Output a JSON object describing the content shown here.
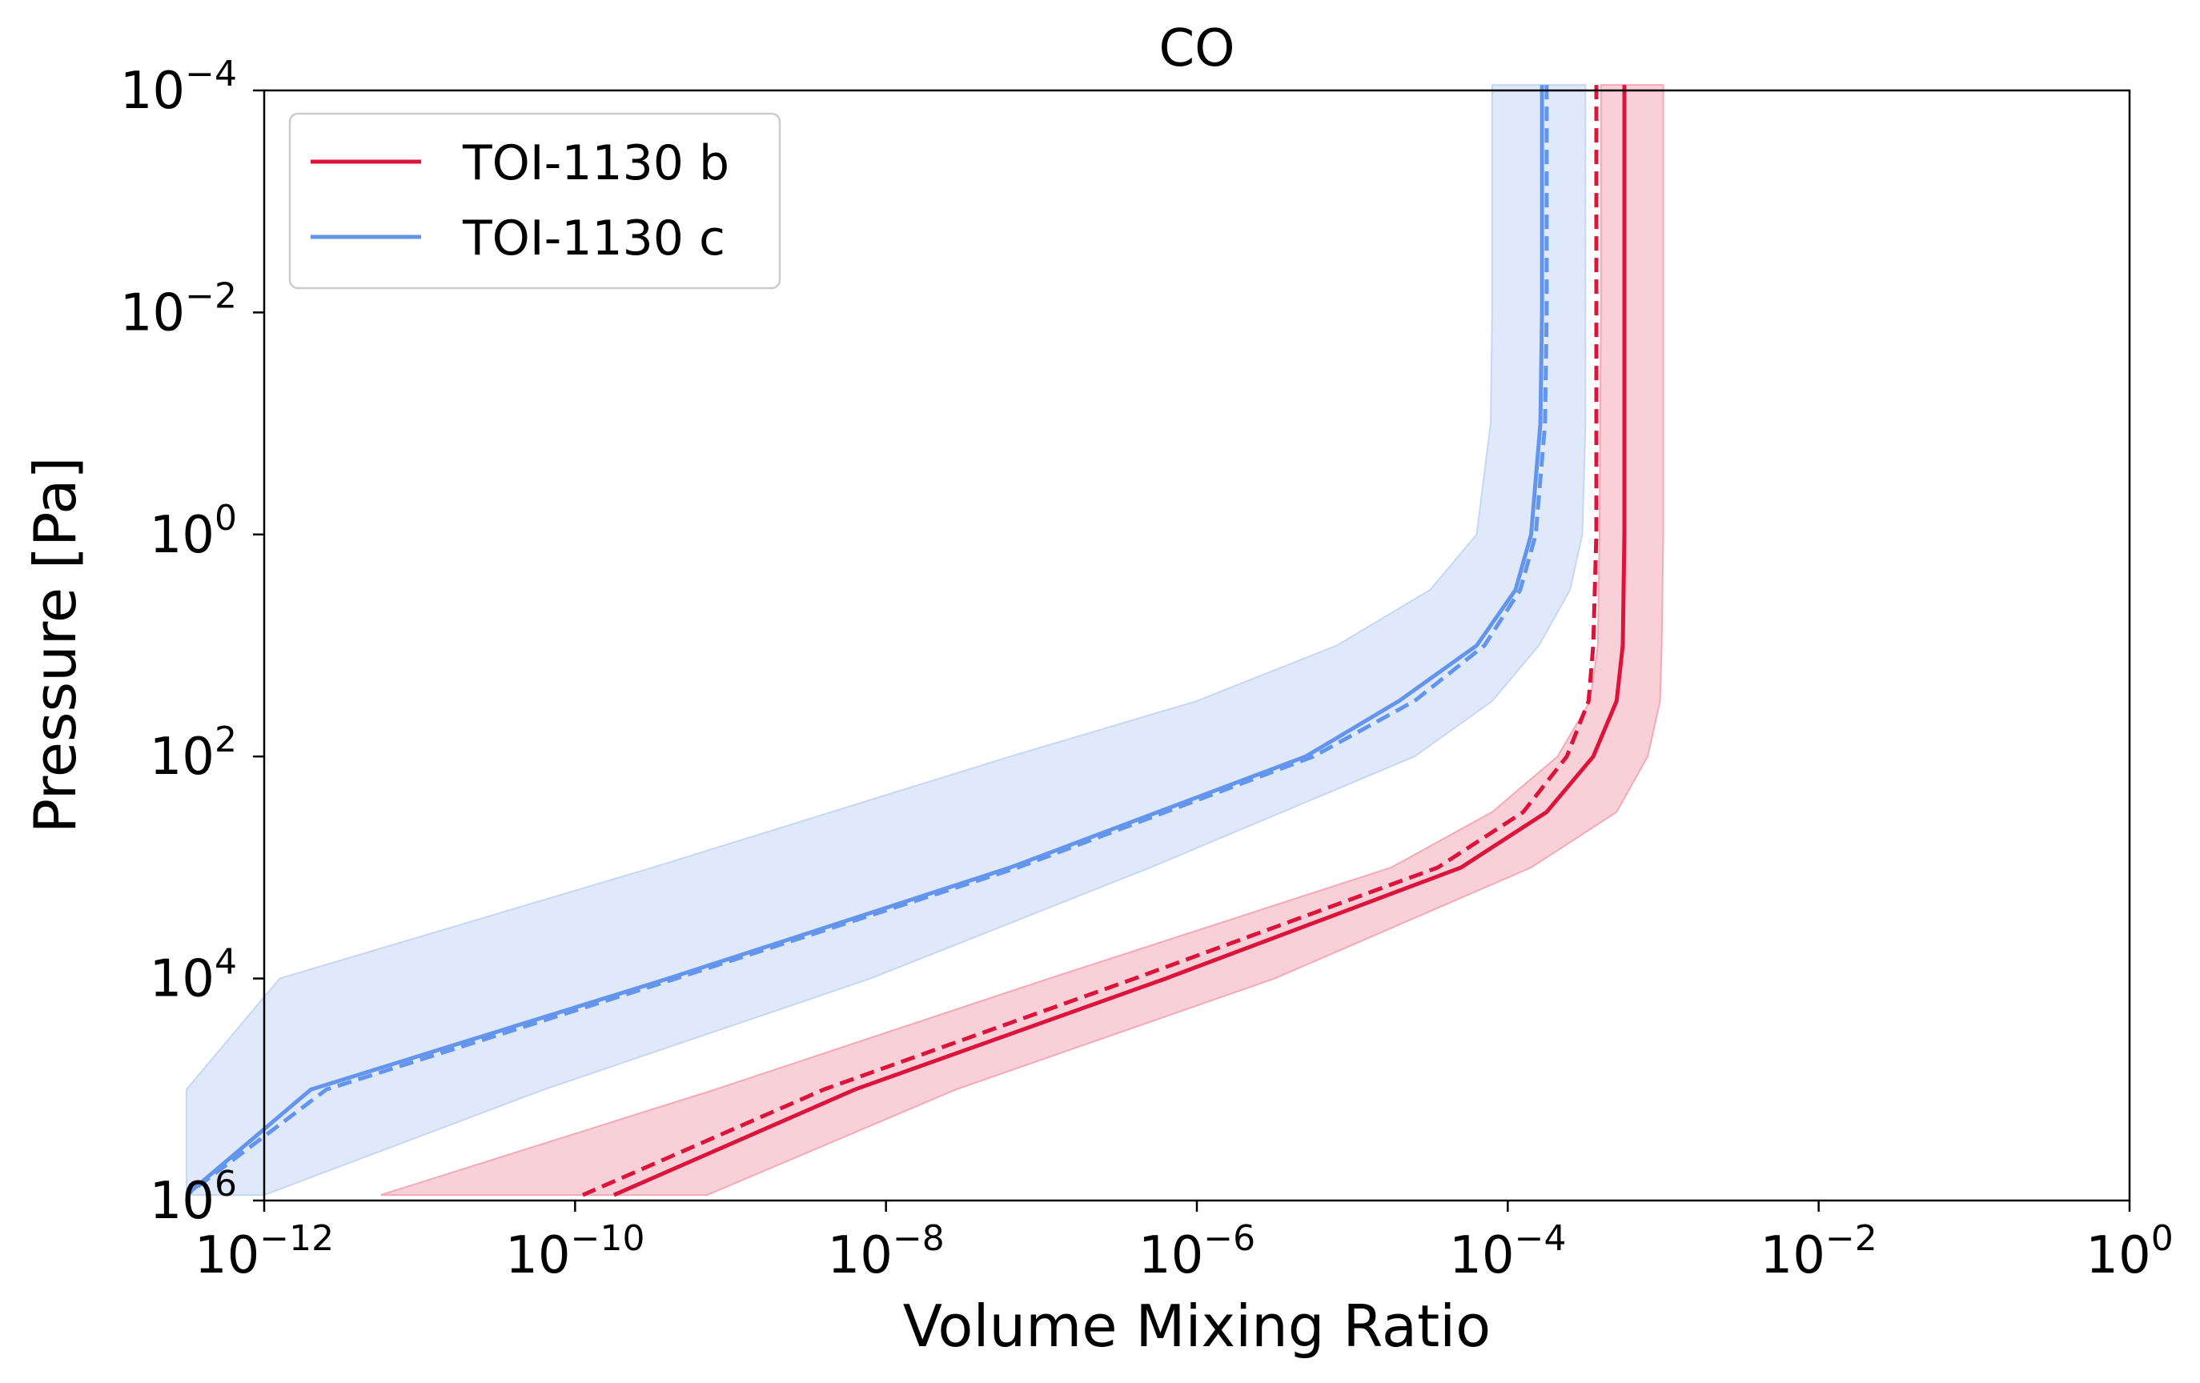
{
  "chart_data": {
    "type": "line",
    "title": "CO",
    "xlabel": "Volume Mixing Ratio",
    "ylabel": "Pressure [Pa]",
    "xscale": "log",
    "yscale": "log",
    "y_inverted": true,
    "xlim_log10": [
      -12,
      0
    ],
    "ylim_log10": [
      -4,
      6
    ],
    "x_ticks": [
      {
        "base": "10",
        "exp": "−12",
        "value_log10": -12
      },
      {
        "base": "10",
        "exp": "−10",
        "value_log10": -10
      },
      {
        "base": "10",
        "exp": "−8",
        "value_log10": -8
      },
      {
        "base": "10",
        "exp": "−6",
        "value_log10": -6
      },
      {
        "base": "10",
        "exp": "−4",
        "value_log10": -4
      },
      {
        "base": "10",
        "exp": "−2",
        "value_log10": -2
      },
      {
        "base": "10",
        "exp": "0",
        "value_log10": 0
      }
    ],
    "y_ticks": [
      {
        "base": "10",
        "exp": "−4",
        "value_log10": -4
      },
      {
        "base": "10",
        "exp": "−2",
        "value_log10": -2
      },
      {
        "base": "10",
        "exp": "0",
        "value_log10": 0
      },
      {
        "base": "10",
        "exp": "2",
        "value_log10": 2
      },
      {
        "base": "10",
        "exp": "4",
        "value_log10": 4
      },
      {
        "base": "10",
        "exp": "6",
        "value_log10": 6
      }
    ],
    "legend": {
      "location": "top-left",
      "entries": [
        "TOI-1130 b",
        "TOI-1130 c"
      ]
    },
    "series": [
      {
        "name": "TOI-1130 b",
        "color": "#dc143c",
        "band_color": "#f4a9b8",
        "log10_pressure": [
          -4.05,
          -2,
          0,
          1,
          1.5,
          2,
          2.5,
          3,
          4,
          5,
          5.95
        ],
        "median_log10_vmr": [
          -3.25,
          -3.25,
          -3.25,
          -3.26,
          -3.3,
          -3.45,
          -3.75,
          -4.3,
          -6.2,
          -8.2,
          -9.75
        ],
        "dashed_log10_vmr": [
          -3.43,
          -3.43,
          -3.43,
          -3.45,
          -3.48,
          -3.62,
          -3.9,
          -4.45,
          -6.4,
          -8.4,
          -9.95
        ],
        "band_low_log10_vmr": [
          -3.4,
          -3.4,
          -3.41,
          -3.42,
          -3.47,
          -3.68,
          -4.1,
          -4.75,
          -6.95,
          -9.1,
          -11.25
        ],
        "band_high_log10_vmr": [
          -3.0,
          -3.0,
          -3.0,
          -3.01,
          -3.02,
          -3.1,
          -3.3,
          -3.85,
          -5.5,
          -7.55,
          -9.15
        ]
      },
      {
        "name": "TOI-1130 c",
        "color": "#6495ed",
        "band_color": "#c6d7f6",
        "log10_pressure": [
          -4.05,
          -2,
          -1,
          0,
          0.5,
          1,
          1.5,
          2,
          3,
          4,
          5,
          5.95
        ],
        "median_log10_vmr": [
          -3.78,
          -3.78,
          -3.79,
          -3.85,
          -3.95,
          -4.2,
          -4.7,
          -5.3,
          -7.2,
          -9.4,
          -11.7,
          -12.5
        ],
        "dashed_log10_vmr": [
          -3.75,
          -3.75,
          -3.76,
          -3.82,
          -3.92,
          -4.15,
          -4.6,
          -5.25,
          -7.15,
          -9.35,
          -11.6,
          -12.5
        ],
        "band_low_log10_vmr": [
          -4.1,
          -4.1,
          -4.11,
          -4.2,
          -4.5,
          -5.1,
          -6.0,
          -7.2,
          -9.5,
          -11.9,
          -12.5,
          -12.5
        ],
        "band_high_log10_vmr": [
          -3.5,
          -3.5,
          -3.5,
          -3.52,
          -3.6,
          -3.8,
          -4.1,
          -4.6,
          -6.3,
          -8.1,
          -10.2,
          -12.0
        ]
      }
    ]
  }
}
